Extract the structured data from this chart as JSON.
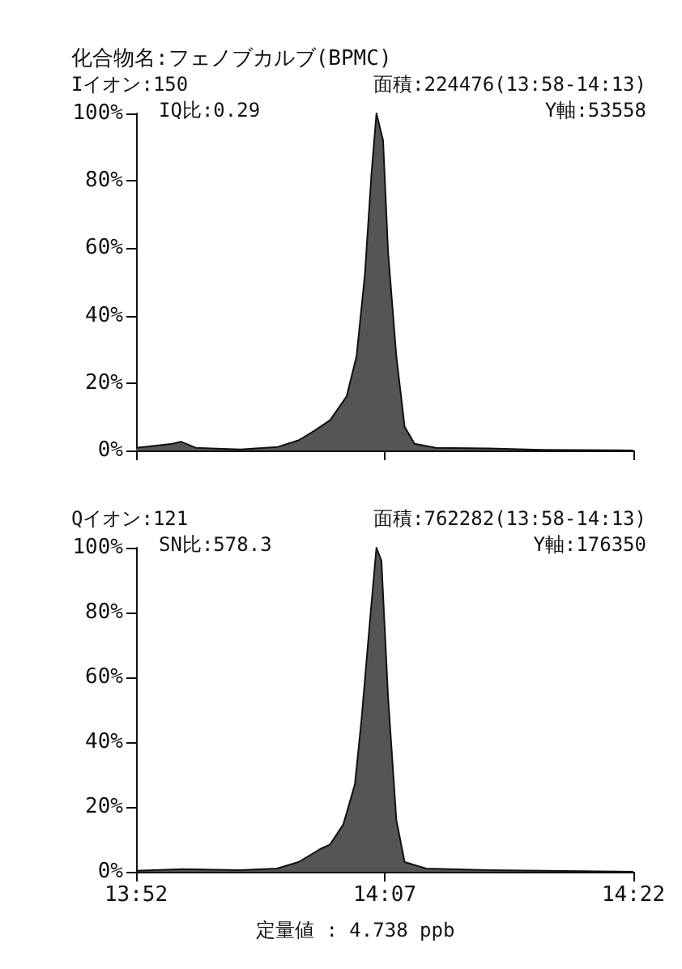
{
  "chart_data": [
    {
      "type": "area",
      "title": "化合物名:フェノブカルブ(BPMC)",
      "annotations": [
        "Iイオン:150",
        "面積:224476(13:58-14:13)",
        "IQ比:0.29",
        "Y軸:53558"
      ],
      "x": [
        832,
        834.2,
        834.7,
        835.6,
        838.3,
        840.5,
        841.8,
        842.8,
        843.7,
        844.7,
        845.3,
        845.8,
        846.2,
        846.5,
        846.9,
        847.2,
        847.7,
        848.2,
        848.8,
        850.1,
        853.3,
        856.5,
        862
      ],
      "series": [
        {
          "color": "#555555",
          "values": [
            0.8,
            2,
            2.6,
            0.8,
            0.3,
            1,
            3,
            6,
            9,
            16,
            28,
            52,
            82,
            100,
            92,
            59,
            28,
            7,
            2,
            0.8,
            0.6,
            0.2,
            0
          ]
        }
      ],
      "xlim": [
        832,
        862
      ],
      "xticks": [
        {
          "value": 832,
          "label": null
        },
        {
          "value": 847,
          "label": null
        },
        {
          "value": 862,
          "label": null
        }
      ],
      "ylim": [
        0,
        100
      ],
      "yticks": [
        {
          "value": 0,
          "label": "0%"
        },
        {
          "value": 20,
          "label": "20%"
        },
        {
          "value": 40,
          "label": "40%"
        },
        {
          "value": 60,
          "label": "60%"
        },
        {
          "value": 80,
          "label": "80%"
        },
        {
          "value": 100,
          "label": "100%"
        }
      ],
      "tick_labels": "y",
      "grid": false
    },
    {
      "type": "area",
      "annotations": [
        "Qイオン:121",
        "面積:762282(13:58-14:13)",
        "SN比:578.3",
        "Y軸:176350",
        "定量値 : 4.738 ppb"
      ],
      "x": [
        832,
        834.8,
        838.3,
        840.5,
        841.8,
        843.1,
        843.7,
        844.5,
        845.2,
        845.6,
        846.1,
        846.5,
        846.8,
        847.2,
        847.7,
        848.2,
        849.5,
        853.3,
        862
      ],
      "series": [
        {
          "color": "#555555",
          "values": [
            0.3,
            0.8,
            0.5,
            1,
            3,
            7,
            8.4,
            14.6,
            27,
            47,
            77,
            100,
            96,
            54,
            16,
            3,
            1,
            0.5,
            0
          ]
        }
      ],
      "xlim": [
        832,
        862
      ],
      "xticks": [
        {
          "value": 832,
          "label": "13:52"
        },
        {
          "value": 847,
          "label": "14:07"
        },
        {
          "value": 862,
          "label": "14:22"
        }
      ],
      "ylim": [
        0,
        100
      ],
      "yticks": [
        {
          "value": 0,
          "label": "0%"
        },
        {
          "value": 20,
          "label": "20%"
        },
        {
          "value": 40,
          "label": "40%"
        },
        {
          "value": 60,
          "label": "60%"
        },
        {
          "value": 80,
          "label": "80%"
        },
        {
          "value": 100,
          "label": "100%"
        }
      ],
      "grid": false
    }
  ]
}
